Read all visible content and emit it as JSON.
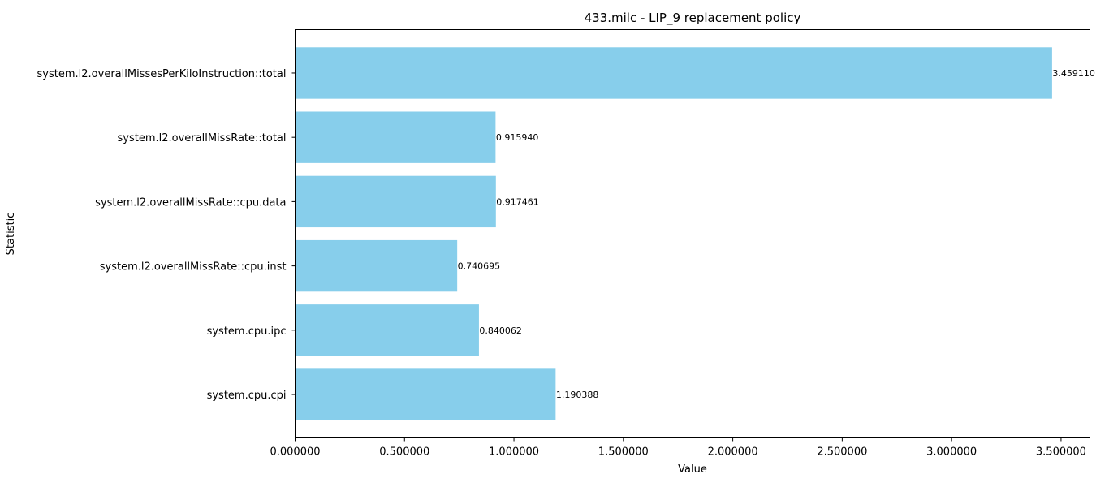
{
  "chart_data": {
    "type": "bar",
    "orientation": "horizontal",
    "title": "433.milc - LIP_9 replacement policy",
    "xlabel": "Value",
    "ylabel": "Statistic",
    "categories": [
      "system.l2.overallMissesPerKiloInstruction::total",
      "system.l2.overallMissRate::total",
      "system.l2.overallMissRate::cpu.data",
      "system.l2.overallMissRate::cpu.inst",
      "system.cpu.ipc",
      "system.cpu.cpi"
    ],
    "values": [
      3.45911,
      0.91594,
      0.917461,
      0.740695,
      0.840062,
      1.190388
    ],
    "value_labels": [
      "3.459110",
      "0.915940",
      "0.917461",
      "0.740695",
      "0.840062",
      "1.190388"
    ],
    "xlim": [
      0,
      3.632
    ],
    "xticks": [
      0,
      0.5,
      1.0,
      1.5,
      2.0,
      2.5,
      3.0,
      3.5
    ],
    "xtick_labels": [
      "0.000000",
      "0.500000",
      "1.000000",
      "1.500000",
      "2.000000",
      "2.500000",
      "3.000000",
      "3.500000"
    ],
    "grid": false,
    "colors": {
      "bar": "#87CEEB",
      "axis": "#000000",
      "text": "#000000"
    }
  }
}
